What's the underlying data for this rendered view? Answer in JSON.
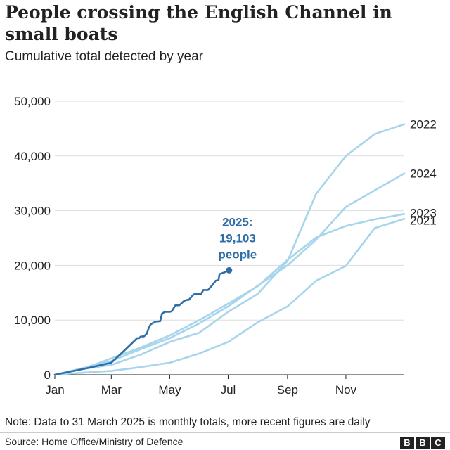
{
  "header": {
    "title": "People crossing the English Channel in small boats",
    "subtitle": "Cumulative total detected by year"
  },
  "footer": {
    "note": "Note: Data to 31 March 2025 is monthly totals, more recent figures are daily",
    "source": "Source: Home Office/Ministry of Defence",
    "logo_letters": [
      "B",
      "B",
      "C"
    ]
  },
  "colors": {
    "highlight": "#2e6da6",
    "other_years": "#a6d5ec",
    "gridline": "#dddddd",
    "axis": "#222222"
  },
  "chart_data": {
    "type": "line",
    "title": "People crossing the English Channel in small boats",
    "subtitle": "Cumulative total detected by year",
    "xlabel": "",
    "ylabel": "",
    "x_unit": "day of year",
    "xlim": [
      0,
      365
    ],
    "ylim": [
      0,
      50000
    ],
    "grid": true,
    "x_ticks": [
      {
        "label": "Jan",
        "value": 0
      },
      {
        "label": "Mar",
        "value": 59
      },
      {
        "label": "May",
        "value": 120
      },
      {
        "label": "Jul",
        "value": 181
      },
      {
        "label": "Sep",
        "value": 243
      },
      {
        "label": "Nov",
        "value": 304
      }
    ],
    "y_ticks": [
      {
        "label": "0",
        "value": 0
      },
      {
        "label": "10,000",
        "value": 10000
      },
      {
        "label": "20,000",
        "value": 20000
      },
      {
        "label": "30,000",
        "value": 30000
      },
      {
        "label": "40,000",
        "value": 40000
      },
      {
        "label": "50,000",
        "value": 50000
      }
    ],
    "series": [
      {
        "name": "2021",
        "label": "2021",
        "highlight": false,
        "x": [
          0,
          31,
          59,
          90,
          120,
          151,
          181,
          212,
          243,
          273,
          304,
          334,
          365
        ],
        "values": [
          0,
          400,
          700,
          1400,
          2200,
          3900,
          6000,
          9600,
          12500,
          17200,
          19900,
          26800,
          28500
        ]
      },
      {
        "name": "2022",
        "label": "2022",
        "highlight": false,
        "x": [
          0,
          31,
          59,
          90,
          120,
          151,
          181,
          212,
          243,
          273,
          304,
          334,
          365
        ],
        "values": [
          0,
          1100,
          1800,
          3700,
          6000,
          7700,
          11500,
          14800,
          20800,
          33100,
          40000,
          44000,
          45800
        ]
      },
      {
        "name": "2023",
        "label": "2023",
        "highlight": false,
        "x": [
          0,
          31,
          59,
          90,
          120,
          151,
          181,
          212,
          243,
          273,
          304,
          334,
          365
        ],
        "values": [
          0,
          1200,
          3000,
          5000,
          7200,
          10000,
          13000,
          16200,
          21000,
          25100,
          27200,
          28400,
          29400
        ]
      },
      {
        "name": "2024",
        "label": "2024",
        "highlight": false,
        "x": [
          0,
          31,
          59,
          90,
          120,
          151,
          181,
          212,
          243,
          273,
          304,
          334,
          365
        ],
        "values": [
          0,
          1300,
          2500,
          4700,
          6700,
          9400,
          12500,
          16300,
          20000,
          24700,
          30700,
          33700,
          36800
        ]
      },
      {
        "name": "2025",
        "label": "2025",
        "highlight": true,
        "x": [
          0,
          31,
          59,
          73,
          86,
          88,
          90,
          93,
          96,
          98,
          100,
          105,
          110,
          112,
          115,
          120,
          122,
          126,
          130,
          135,
          138,
          140,
          145,
          150,
          153,
          155,
          160,
          165,
          168,
          171,
          172,
          175,
          177,
          180,
          182
        ],
        "values": [
          0,
          1100,
          2200,
          4500,
          6700,
          6700,
          7000,
          7000,
          7500,
          8500,
          9200,
          9700,
          9800,
          11200,
          11500,
          11500,
          11600,
          12700,
          12700,
          13500,
          13700,
          13700,
          14700,
          14800,
          14800,
          15500,
          15500,
          16500,
          17200,
          17300,
          18400,
          18600,
          18700,
          19000,
          19103
        ]
      }
    ],
    "annotations": [
      {
        "lines": [
          "2025:",
          "19,103",
          "people"
        ],
        "series": "2025",
        "x": 182,
        "y": 19103
      }
    ]
  }
}
